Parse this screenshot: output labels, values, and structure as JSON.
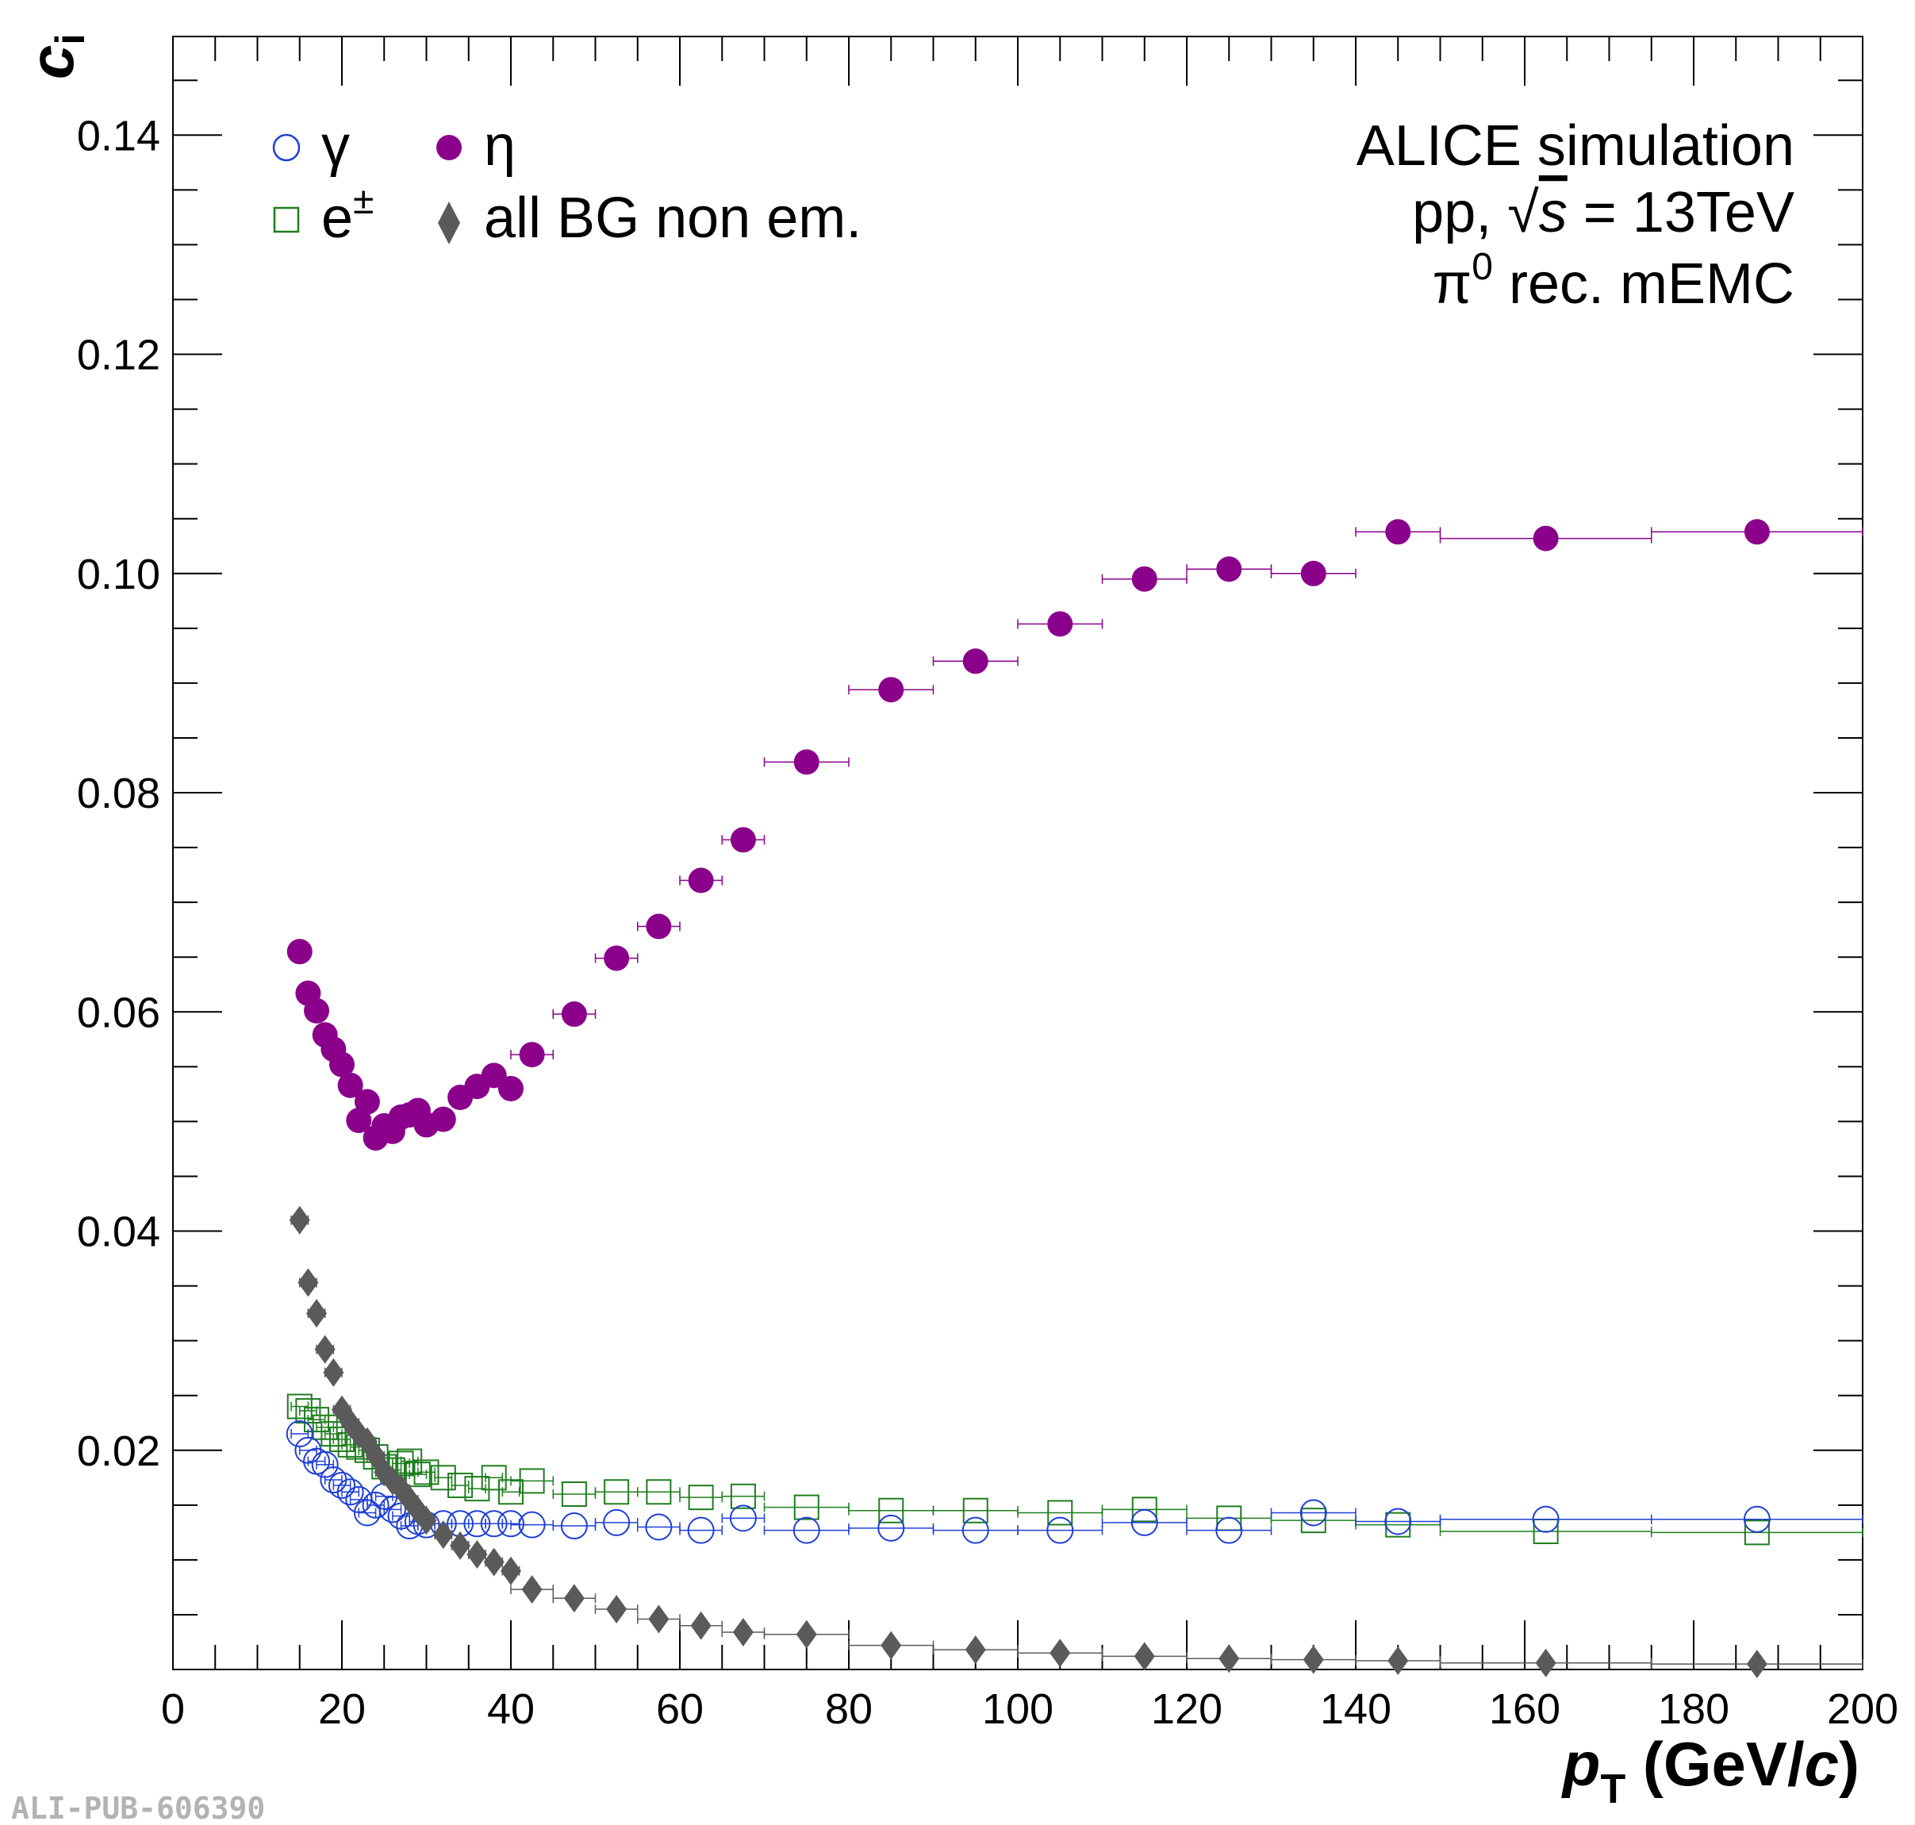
{
  "watermark": "ALI-PUB-606390",
  "annotation": {
    "line1": "ALICE simulation",
    "line2_pre": "pp, ",
    "line2_sqrt": "√",
    "line2_s": "s",
    "line2_post": " = 13TeV",
    "line3_pi": "π",
    "line3_sup": "0",
    "line3_post": " rec. mEMC"
  },
  "legend": {
    "gamma": "γ",
    "eta": "η",
    "electron": "e",
    "electron_sup": "±",
    "bg": "all BG non em."
  },
  "chart_data": {
    "type": "scatter",
    "xlabel_p": "p",
    "xlabel_sub": "T",
    "xlabel_units_pre": " (GeV/",
    "xlabel_units_c": "c",
    "xlabel_units_post": ")",
    "ylabel": "c",
    "ylabel_sub": "i",
    "xlim": [
      0,
      200
    ],
    "ylim": [
      0,
      0.149
    ],
    "x_ticks": [
      "0",
      "20",
      "40",
      "60",
      "80",
      "100",
      "120",
      "140",
      "160",
      "180",
      "200"
    ],
    "y_ticks": [
      "0.02",
      "0.04",
      "0.06",
      "0.08",
      "0.10",
      "0.12",
      "0.14"
    ],
    "colors": {
      "gamma": "#1f3fd6",
      "electron": "#1e7d1e",
      "eta": "#8b008b",
      "bg": "#5a5a5a"
    },
    "series": [
      {
        "name": "η",
        "key": "eta",
        "marker": "filled-circle",
        "points": [
          [
            15,
            0.0655,
            1
          ],
          [
            16,
            0.0617,
            1
          ],
          [
            17,
            0.0601,
            1
          ],
          [
            18,
            0.0579,
            1
          ],
          [
            19,
            0.0566,
            1
          ],
          [
            20,
            0.0552,
            1
          ],
          [
            21,
            0.0533,
            1
          ],
          [
            22,
            0.0501,
            1
          ],
          [
            23,
            0.0518,
            1
          ],
          [
            24,
            0.0485,
            1
          ],
          [
            25,
            0.0496,
            1
          ],
          [
            26,
            0.0491,
            1
          ],
          [
            27,
            0.0504,
            1
          ],
          [
            28,
            0.0506,
            1
          ],
          [
            29,
            0.051,
            1
          ],
          [
            30,
            0.0497,
            1
          ],
          [
            32,
            0.0502,
            1
          ],
          [
            34,
            0.0522,
            1
          ],
          [
            36,
            0.0532,
            1
          ],
          [
            38,
            0.0542,
            1
          ],
          [
            40,
            0.053,
            1
          ],
          [
            42.5,
            0.0561,
            2.5
          ],
          [
            47.5,
            0.0598,
            2.5
          ],
          [
            52.5,
            0.0649,
            2.5
          ],
          [
            57.5,
            0.0678,
            2.5
          ],
          [
            62.5,
            0.072,
            2.5
          ],
          [
            67.5,
            0.0757,
            2.5
          ],
          [
            75,
            0.0828,
            5
          ],
          [
            85,
            0.0894,
            5
          ],
          [
            95,
            0.092,
            5
          ],
          [
            105,
            0.0954,
            5
          ],
          [
            115,
            0.0995,
            5
          ],
          [
            125,
            0.1004,
            5
          ],
          [
            135,
            0.1,
            5
          ],
          [
            145,
            0.1038,
            5
          ],
          [
            162.5,
            0.1032,
            12.5
          ],
          [
            187.5,
            0.1038,
            12.5
          ]
        ]
      },
      {
        "name": "e±",
        "key": "electron",
        "marker": "open-square",
        "points": [
          [
            15,
            0.024,
            1
          ],
          [
            16,
            0.0236,
            1
          ],
          [
            17,
            0.0228,
            1
          ],
          [
            18,
            0.0221,
            1
          ],
          [
            19,
            0.0215,
            1
          ],
          [
            20,
            0.021,
            1
          ],
          [
            21,
            0.0205,
            1
          ],
          [
            22,
            0.0203,
            1
          ],
          [
            23,
            0.02,
            1
          ],
          [
            24,
            0.0194,
            1
          ],
          [
            25,
            0.0185,
            1
          ],
          [
            26,
            0.0182,
            1
          ],
          [
            27,
            0.0188,
            1
          ],
          [
            28,
            0.019,
            1
          ],
          [
            29,
            0.0178,
            1
          ],
          [
            30,
            0.018,
            1
          ],
          [
            32,
            0.0175,
            1
          ],
          [
            34,
            0.0168,
            1
          ],
          [
            36,
            0.0165,
            1
          ],
          [
            38,
            0.0175,
            1
          ],
          [
            40,
            0.0162,
            1
          ],
          [
            42.5,
            0.0172,
            2.5
          ],
          [
            47.5,
            0.016,
            2.5
          ],
          [
            52.5,
            0.0162,
            2.5
          ],
          [
            57.5,
            0.0162,
            2.5
          ],
          [
            62.5,
            0.0157,
            2.5
          ],
          [
            67.5,
            0.0158,
            2.5
          ],
          [
            75,
            0.0148,
            5
          ],
          [
            85,
            0.0145,
            5
          ],
          [
            95,
            0.0145,
            5
          ],
          [
            105,
            0.0143,
            5
          ],
          [
            115,
            0.0146,
            5
          ],
          [
            125,
            0.0138,
            5
          ],
          [
            135,
            0.0136,
            5
          ],
          [
            145,
            0.0132,
            5
          ],
          [
            162.5,
            0.0126,
            12.5
          ],
          [
            187.5,
            0.0125,
            12.5
          ]
        ]
      },
      {
        "name": "γ",
        "key": "gamma",
        "marker": "open-circle",
        "points": [
          [
            15,
            0.0215,
            1
          ],
          [
            16,
            0.02,
            1
          ],
          [
            17,
            0.019,
            1
          ],
          [
            18,
            0.0187,
            1
          ],
          [
            19,
            0.0173,
            1
          ],
          [
            20,
            0.0168,
            1
          ],
          [
            21,
            0.0162,
            1
          ],
          [
            22,
            0.0155,
            1
          ],
          [
            23,
            0.0143,
            1
          ],
          [
            24,
            0.015,
            1
          ],
          [
            25,
            0.0158,
            1
          ],
          [
            26,
            0.0146,
            1
          ],
          [
            27,
            0.014,
            1
          ],
          [
            28,
            0.0131,
            1
          ],
          [
            29,
            0.0135,
            1
          ],
          [
            30,
            0.0132,
            1
          ],
          [
            32,
            0.0133,
            1
          ],
          [
            34,
            0.0133,
            1
          ],
          [
            36,
            0.0133,
            1
          ],
          [
            38,
            0.0133,
            1
          ],
          [
            40,
            0.0133,
            1
          ],
          [
            42.5,
            0.0132,
            2.5
          ],
          [
            47.5,
            0.0131,
            2.5
          ],
          [
            52.5,
            0.0134,
            2.5
          ],
          [
            57.5,
            0.013,
            2.5
          ],
          [
            62.5,
            0.0127,
            2.5
          ],
          [
            67.5,
            0.0138,
            2.5
          ],
          [
            75,
            0.0127,
            5
          ],
          [
            85,
            0.0129,
            5
          ],
          [
            95,
            0.0127,
            5
          ],
          [
            105,
            0.0127,
            5
          ],
          [
            115,
            0.0134,
            5
          ],
          [
            125,
            0.0127,
            5
          ],
          [
            135,
            0.0143,
            5
          ],
          [
            145,
            0.0135,
            5
          ],
          [
            162.5,
            0.0137,
            12.5
          ],
          [
            187.5,
            0.0137,
            12.5
          ]
        ]
      },
      {
        "name": "all BG non em.",
        "key": "bg",
        "marker": "filled-diamond",
        "points": [
          [
            15,
            0.041,
            1
          ],
          [
            16,
            0.0353,
            1
          ],
          [
            17,
            0.0325,
            1
          ],
          [
            18,
            0.0292,
            1
          ],
          [
            19,
            0.0271,
            1
          ],
          [
            20,
            0.0237,
            1
          ],
          [
            21,
            0.0225,
            1
          ],
          [
            22,
            0.0215,
            1
          ],
          [
            23,
            0.0208,
            1
          ],
          [
            24,
            0.0195,
            1
          ],
          [
            25,
            0.018,
            1
          ],
          [
            26,
            0.0172,
            1
          ],
          [
            27,
            0.0165,
            1
          ],
          [
            28,
            0.0155,
            1
          ],
          [
            29,
            0.0145,
            1
          ],
          [
            30,
            0.0136,
            1
          ],
          [
            32,
            0.0123,
            1
          ],
          [
            34,
            0.0113,
            1
          ],
          [
            36,
            0.0105,
            1
          ],
          [
            38,
            0.0098,
            1
          ],
          [
            40,
            0.009,
            1
          ],
          [
            42.5,
            0.0073,
            2.5
          ],
          [
            47.5,
            0.0065,
            2.5
          ],
          [
            52.5,
            0.0055,
            2.5
          ],
          [
            57.5,
            0.0046,
            2.5
          ],
          [
            62.5,
            0.004,
            2.5
          ],
          [
            67.5,
            0.0034,
            2.5
          ],
          [
            75,
            0.0032,
            5
          ],
          [
            85,
            0.0022,
            5
          ],
          [
            95,
            0.0018,
            5
          ],
          [
            105,
            0.0015,
            5
          ],
          [
            115,
            0.0012,
            5
          ],
          [
            125,
            0.001,
            5
          ],
          [
            135,
            0.0009,
            5
          ],
          [
            145,
            0.0008,
            5
          ],
          [
            162.5,
            0.0006,
            12.5
          ],
          [
            187.5,
            0.0005,
            12.5
          ]
        ]
      }
    ]
  }
}
